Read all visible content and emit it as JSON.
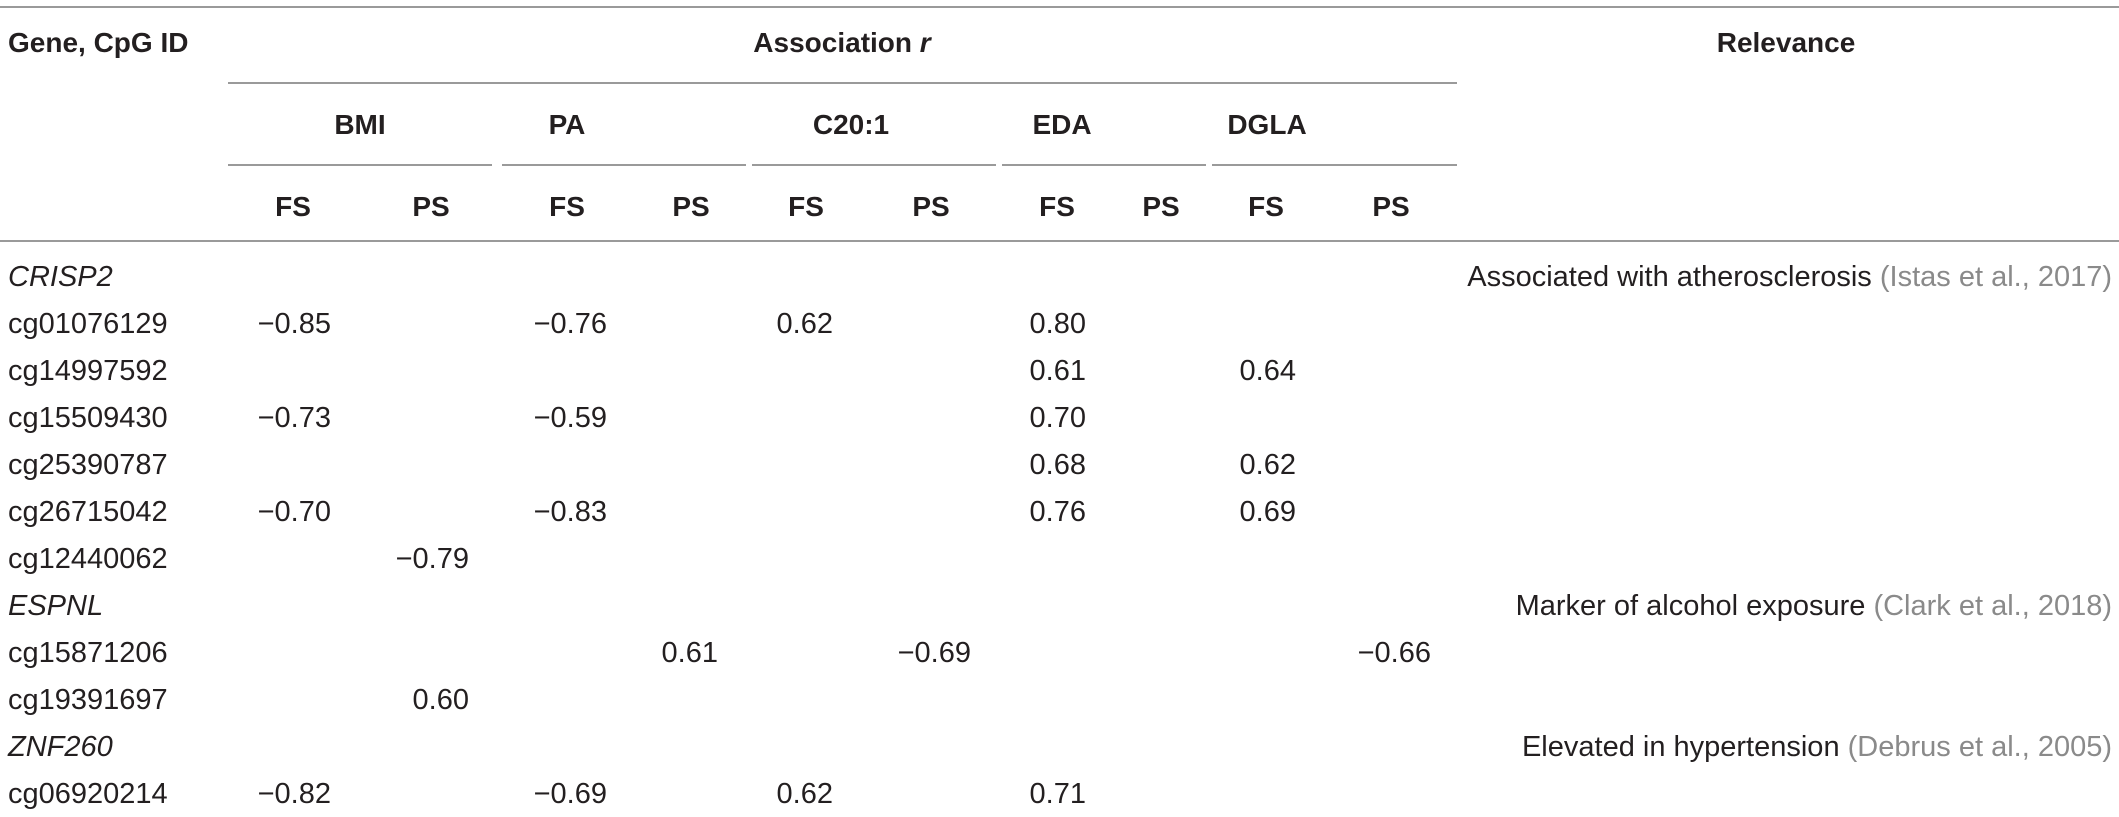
{
  "headers": {
    "gene": "Gene, CpG ID",
    "association_prefix": "Association ",
    "association_r": "r",
    "relevance": "Relevance",
    "groups": [
      "BMI",
      "PA",
      "C20:1",
      "EDA",
      "DGLA"
    ],
    "sub": [
      "FS",
      "PS",
      "FS",
      "PS",
      "FS",
      "PS",
      "FS",
      "PS",
      "FS",
      "PS"
    ]
  },
  "rows": [
    {
      "id": "CRISP2",
      "type": "gene",
      "values": [
        "",
        "",
        "",
        "",
        "",
        "",
        "",
        "",
        "",
        ""
      ],
      "relevance": "Associated with atherosclerosis",
      "citation": "(Istas et al., 2017)"
    },
    {
      "id": "cg01076129",
      "type": "cpg",
      "values": [
        "−0.85",
        "",
        "−0.76",
        "",
        "0.62",
        "",
        "0.80",
        "",
        "",
        ""
      ]
    },
    {
      "id": "cg14997592",
      "type": "cpg",
      "values": [
        "",
        "",
        "",
        "",
        "",
        "",
        "0.61",
        "",
        "0.64",
        ""
      ]
    },
    {
      "id": "cg15509430",
      "type": "cpg",
      "values": [
        "−0.73",
        "",
        "−0.59",
        "",
        "",
        "",
        "0.70",
        "",
        "",
        ""
      ]
    },
    {
      "id": "cg25390787",
      "type": "cpg",
      "values": [
        "",
        "",
        "",
        "",
        "",
        "",
        "0.68",
        "",
        "0.62",
        ""
      ]
    },
    {
      "id": "cg26715042",
      "type": "cpg",
      "values": [
        "−0.70",
        "",
        "−0.83",
        "",
        "",
        "",
        "0.76",
        "",
        "0.69",
        ""
      ]
    },
    {
      "id": "cg12440062",
      "type": "cpg",
      "values": [
        "",
        "−0.79",
        "",
        "",
        "",
        "",
        "",
        "",
        "",
        ""
      ]
    },
    {
      "id": "ESPNL",
      "type": "gene",
      "values": [
        "",
        "",
        "",
        "",
        "",
        "",
        "",
        "",
        "",
        ""
      ],
      "relevance": "Marker of alcohol exposure",
      "citation": "(Clark et al., 2018)"
    },
    {
      "id": "cg15871206",
      "type": "cpg",
      "values": [
        "",
        "",
        "",
        "0.61",
        "",
        "−0.69",
        "",
        "",
        "",
        "−0.66"
      ]
    },
    {
      "id": "cg19391697",
      "type": "cpg",
      "values": [
        "",
        "0.60",
        "",
        "",
        "",
        "",
        "",
        "",
        "",
        ""
      ]
    },
    {
      "id": "ZNF260",
      "type": "gene",
      "values": [
        "",
        "",
        "",
        "",
        "",
        "",
        "",
        "",
        "",
        ""
      ],
      "relevance": "Elevated in hypertension",
      "citation": "(Debrus et al., 2005)"
    },
    {
      "id": "cg06920214",
      "type": "cpg",
      "values": [
        "−0.82",
        "",
        "−0.69",
        "",
        "0.62",
        "",
        "0.71",
        "",
        "",
        ""
      ]
    }
  ]
}
